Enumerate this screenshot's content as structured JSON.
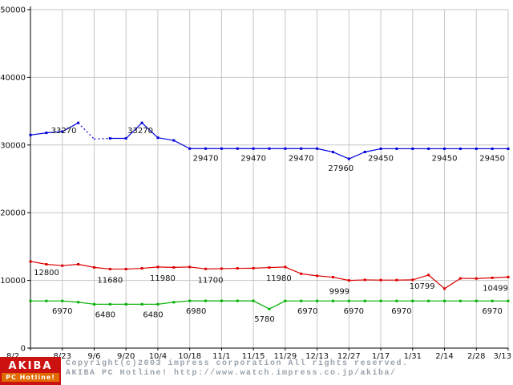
{
  "chart_data": {
    "type": "line",
    "x_tick_labels": [
      "8/2",
      "8/23",
      "9/6",
      "9/20",
      "10/4",
      "10/18",
      "11/1",
      "11/15",
      "11/29",
      "12/13",
      "12/27",
      "1/17",
      "1/31",
      "2/14",
      "2/28",
      "3/13"
    ],
    "y_ticks": [
      0,
      10000,
      20000,
      30000,
      40000,
      50000
    ],
    "ylim": [
      0,
      50000
    ],
    "grid": true,
    "legend": "none",
    "colors": {
      "grid": "#c6c6c6",
      "axis": "#000000",
      "value_label": "#111111"
    },
    "series": [
      {
        "name": "series-blue",
        "color": "#0000dd",
        "dashed_segments": [
          [
            1.5,
            2.5
          ]
        ],
        "points": [
          [
            0,
            31480
          ],
          [
            0.5,
            31800
          ],
          [
            1,
            31980
          ],
          [
            1.5,
            33270
          ],
          [
            2,
            30880
          ],
          [
            2.5,
            30980
          ],
          [
            3,
            30980
          ],
          [
            3.5,
            33270
          ],
          [
            4,
            31080
          ],
          [
            4.5,
            30680
          ],
          [
            5,
            29470
          ],
          [
            5.5,
            29470
          ],
          [
            6,
            29470
          ],
          [
            6.5,
            29470
          ],
          [
            7,
            29470
          ],
          [
            7.5,
            29470
          ],
          [
            8,
            29470
          ],
          [
            8.5,
            29470
          ],
          [
            9,
            29470
          ],
          [
            9.5,
            28960
          ],
          [
            10,
            27960
          ],
          [
            10.5,
            28970
          ],
          [
            11,
            29450
          ],
          [
            11.5,
            29450
          ],
          [
            12,
            29450
          ],
          [
            12.5,
            29450
          ],
          [
            13,
            29450
          ],
          [
            13.5,
            29450
          ],
          [
            14,
            29450
          ],
          [
            14.5,
            29450
          ],
          [
            15,
            29450
          ]
        ],
        "labels": [
          {
            "x": 1.5,
            "v": 33270,
            "t": "33270",
            "dx": -18,
            "dy": 13
          },
          {
            "x": 3.5,
            "v": 33270,
            "t": "33270",
            "dx": -2,
            "dy": 13
          },
          {
            "x": 5.5,
            "v": 29470,
            "t": "29470",
            "dy": 15
          },
          {
            "x": 7,
            "v": 29470,
            "t": "29470",
            "dy": 15
          },
          {
            "x": 8.5,
            "v": 29470,
            "t": "29470",
            "dy": 15
          },
          {
            "x": 10,
            "v": 27960,
            "t": "27960",
            "dx": -10,
            "dy": 15
          },
          {
            "x": 11,
            "v": 29450,
            "t": "29450",
            "dy": 15
          },
          {
            "x": 13,
            "v": 29450,
            "t": "29450",
            "dy": 15
          },
          {
            "x": 14.5,
            "v": 29450,
            "t": "29450",
            "dy": 15
          }
        ]
      },
      {
        "name": "series-red",
        "color": "#dd0000",
        "points": [
          [
            0,
            12800
          ],
          [
            0.5,
            12380
          ],
          [
            1,
            12180
          ],
          [
            1.5,
            12380
          ],
          [
            2,
            11920
          ],
          [
            2.5,
            11680
          ],
          [
            3,
            11680
          ],
          [
            3.5,
            11780
          ],
          [
            4,
            11980
          ],
          [
            4.5,
            11920
          ],
          [
            5,
            11980
          ],
          [
            5.5,
            11700
          ],
          [
            6,
            11740
          ],
          [
            6.5,
            11780
          ],
          [
            7,
            11800
          ],
          [
            7.5,
            11900
          ],
          [
            8,
            11980
          ],
          [
            8.5,
            10980
          ],
          [
            9,
            10680
          ],
          [
            9.5,
            10480
          ],
          [
            10,
            9999
          ],
          [
            10.5,
            10080
          ],
          [
            11,
            10050
          ],
          [
            11.5,
            10050
          ],
          [
            12,
            10080
          ],
          [
            12.5,
            10799
          ],
          [
            13,
            8790
          ],
          [
            13.5,
            10299
          ],
          [
            14,
            10280
          ],
          [
            14.5,
            10380
          ],
          [
            15,
            10499
          ]
        ],
        "labels": [
          {
            "x": 0,
            "v": 12800,
            "t": "12800",
            "dx": 20,
            "dy": 17
          },
          {
            "x": 2.5,
            "v": 11680,
            "t": "11680",
            "dy": 17
          },
          {
            "x": 4,
            "v": 11980,
            "t": "11980",
            "dx": 6,
            "dy": 17
          },
          {
            "x": 5.5,
            "v": 11700,
            "t": "11700",
            "dx": 6,
            "dy": 17
          },
          {
            "x": 8,
            "v": 11980,
            "t": "11980",
            "dx": -8,
            "dy": 17
          },
          {
            "x": 10,
            "v": 9999,
            "t": "9999",
            "dx": -12,
            "dy": 17
          },
          {
            "x": 12.5,
            "v": 10799,
            "t": "10799",
            "dx": -8,
            "dy": 17
          },
          {
            "x": 15,
            "v": 10499,
            "t": "10499",
            "dx": -16,
            "dy": 17
          }
        ]
      },
      {
        "name": "series-green",
        "color": "#00b000",
        "points": [
          [
            0,
            6970
          ],
          [
            0.5,
            6970
          ],
          [
            1,
            6970
          ],
          [
            1.5,
            6780
          ],
          [
            2,
            6480
          ],
          [
            2.5,
            6480
          ],
          [
            3,
            6480
          ],
          [
            3.5,
            6480
          ],
          [
            4,
            6480
          ],
          [
            4.5,
            6780
          ],
          [
            5,
            6980
          ],
          [
            5.5,
            6980
          ],
          [
            6,
            6980
          ],
          [
            6.5,
            6980
          ],
          [
            7,
            6980
          ],
          [
            7.5,
            5780
          ],
          [
            8,
            6970
          ],
          [
            8.5,
            6970
          ],
          [
            9,
            6970
          ],
          [
            9.5,
            6970
          ],
          [
            10,
            6970
          ],
          [
            10.5,
            6970
          ],
          [
            11,
            6970
          ],
          [
            11.5,
            6970
          ],
          [
            12,
            6970
          ],
          [
            12.5,
            6970
          ],
          [
            13,
            6970
          ],
          [
            13.5,
            6970
          ],
          [
            14,
            6970
          ],
          [
            14.5,
            6970
          ],
          [
            15,
            6970
          ]
        ],
        "labels": [
          {
            "x": 1,
            "v": 6970,
            "t": "6970",
            "dy": 16
          },
          {
            "x": 2.5,
            "v": 6480,
            "t": "6480",
            "dx": -6,
            "dy": 16
          },
          {
            "x": 4,
            "v": 6480,
            "t": "6480",
            "dx": -6,
            "dy": 16
          },
          {
            "x": 5,
            "v": 6980,
            "t": "6980",
            "dx": 8,
            "dy": 16
          },
          {
            "x": 7.5,
            "v": 5780,
            "t": "5780",
            "dx": -6,
            "dy": 16
          },
          {
            "x": 8.5,
            "v": 6970,
            "t": "6970",
            "dx": 8,
            "dy": 16
          },
          {
            "x": 10,
            "v": 6970,
            "t": "6970",
            "dx": 6,
            "dy": 16
          },
          {
            "x": 11.5,
            "v": 6970,
            "t": "6970",
            "dx": 6,
            "dy": 16
          },
          {
            "x": 14.5,
            "v": 6970,
            "t": "6970",
            "dy": 16
          }
        ]
      }
    ]
  },
  "footer": {
    "logo": {
      "line1": "AKIBA",
      "line2": "PC Hotline!"
    },
    "copyright": "Copyright(c)2003 impress corporation All rights reserved.",
    "site": "AKIBA PC Hotline!  http://www.watch.impress.co.jp/akiba/"
  }
}
